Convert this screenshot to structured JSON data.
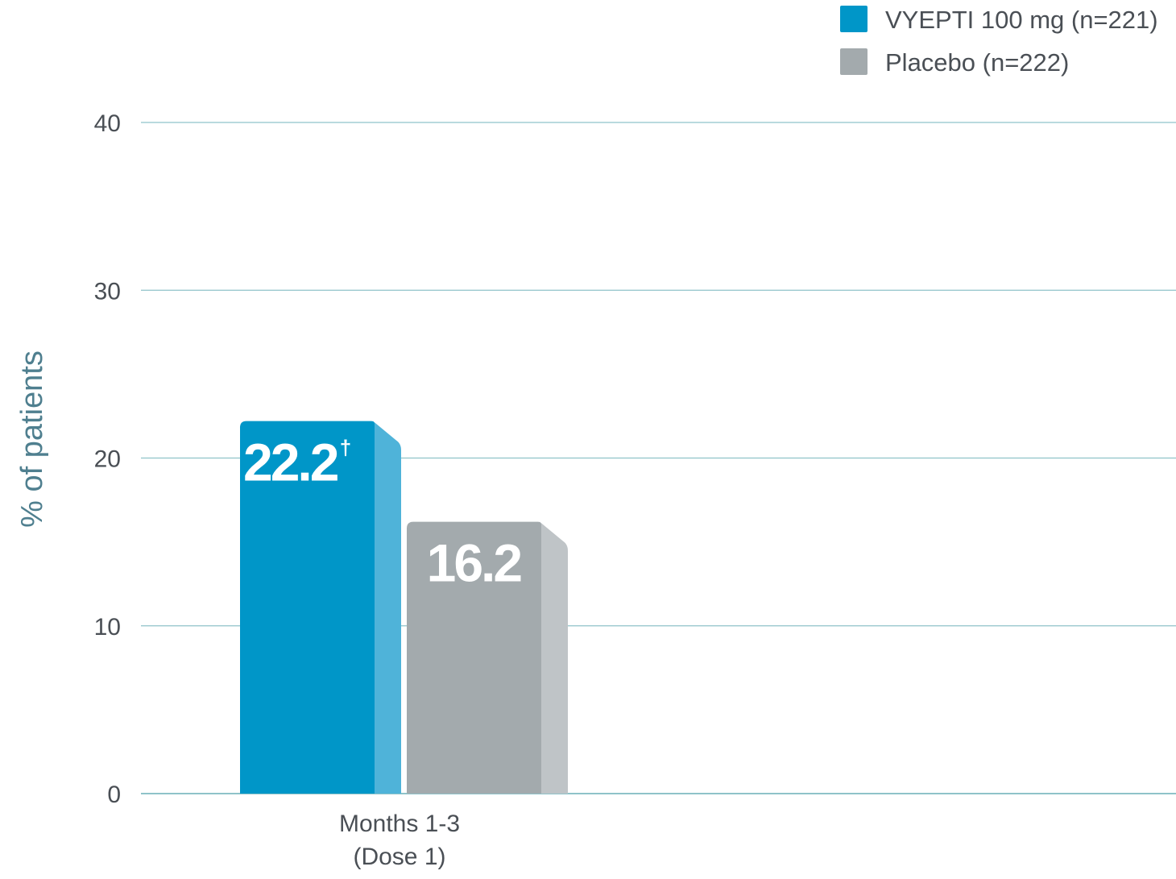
{
  "colors": {
    "grid": "#8fc3c9",
    "axis_text": "#4a4f55",
    "ylabel": "#4f7f8f"
  },
  "legend": [
    {
      "label": "VYEPTI 100 mg (n=221)",
      "color": "#0096c8"
    },
    {
      "label": "Placebo (n=222)",
      "color": "#a3aaad"
    }
  ],
  "chart_data": {
    "type": "bar",
    "categories": [
      "Months 1-3\n(Dose 1)"
    ],
    "series": [
      {
        "name": "VYEPTI 100 mg (n=221)",
        "values": [
          22.2
        ],
        "value_labels": [
          "22.2"
        ],
        "superscripts": [
          "†"
        ],
        "color": "#0096c8",
        "side_color": "#4fb3d9"
      },
      {
        "name": "Placebo (n=222)",
        "values": [
          16.2
        ],
        "value_labels": [
          "16.2"
        ],
        "superscripts": [
          ""
        ],
        "color": "#a3aaad",
        "side_color": "#bfc4c7"
      }
    ],
    "ylabel": "% of patients",
    "xlabel": "",
    "ylim": [
      0,
      40
    ],
    "yticks": [
      0,
      10,
      20,
      30,
      40
    ],
    "grid": true,
    "legend_position": "top-right"
  }
}
